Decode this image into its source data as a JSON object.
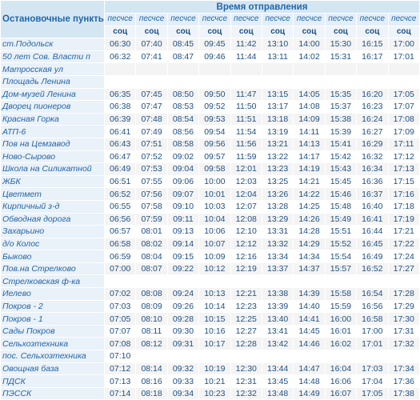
{
  "table": {
    "header": {
      "stops": "Остановочные пункты",
      "time": "Время отправления",
      "sub": [
        "песчсе",
        "песчсе",
        "песчсе",
        "песчсе",
        "песчсе",
        "песчсе",
        "песчсе",
        "песчсе",
        "песчсе",
        "песчсе"
      ],
      "kind": [
        "соц",
        "соц",
        "соц",
        "соц",
        "соц",
        "соц",
        "соц",
        "соц",
        "соц",
        "соц"
      ]
    },
    "rows": [
      {
        "stop": "ст.Подольск",
        "times": [
          "06:30",
          "07:40",
          "08:45",
          "09:45",
          "11:42",
          "13:10",
          "14:00",
          "15:30",
          "16:15",
          "17:00"
        ]
      },
      {
        "stop": "50 лет Сов. Власти п",
        "times": [
          "06:32",
          "07:41",
          "08:47",
          "09:46",
          "11:44",
          "13:11",
          "14:02",
          "15:31",
          "16:17",
          "17:01"
        ]
      },
      {
        "stop": "Матросская ул",
        "times": []
      },
      {
        "stop": "Площадь Ленина",
        "times": []
      },
      {
        "stop": "Дом-музей Ленина",
        "times": [
          "06:35",
          "07:45",
          "08:50",
          "09:50",
          "11:47",
          "13:15",
          "14:05",
          "15:35",
          "16:20",
          "17:05"
        ]
      },
      {
        "stop": "Дворец пионеров",
        "times": [
          "06:38",
          "07:47",
          "08:53",
          "09:52",
          "11:50",
          "13:17",
          "14:08",
          "15:37",
          "16:23",
          "17:07"
        ]
      },
      {
        "stop": "Красная Горка",
        "times": [
          "06:39",
          "07:48",
          "08:54",
          "09:53",
          "11:51",
          "13:18",
          "14:09",
          "15:38",
          "16:24",
          "17:08"
        ]
      },
      {
        "stop": "АТП-6",
        "times": [
          "06:41",
          "07:49",
          "08:56",
          "09:54",
          "11:54",
          "13:19",
          "14:11",
          "15:39",
          "16:27",
          "17:09"
        ]
      },
      {
        "stop": "Пов на Цемзавод",
        "times": [
          "06:43",
          "07:51",
          "08:58",
          "09:56",
          "11:56",
          "13:21",
          "14:13",
          "15:41",
          "16:29",
          "17:11"
        ]
      },
      {
        "stop": "Ново-Сырово",
        "times": [
          "06:47",
          "07:52",
          "09:02",
          "09:57",
          "11:59",
          "13:22",
          "14:17",
          "15:42",
          "16:32",
          "17:12"
        ]
      },
      {
        "stop": "Школа на Силикатной",
        "times": [
          "06:49",
          "07:53",
          "09:04",
          "09:58",
          "12:01",
          "13:23",
          "14:19",
          "15:43",
          "16:34",
          "17:13"
        ]
      },
      {
        "stop": "ЖБК",
        "times": [
          "06:51",
          "07:55",
          "09:06",
          "10:00",
          "12:03",
          "13:25",
          "14:21",
          "15:45",
          "16:36",
          "17:15"
        ]
      },
      {
        "stop": "Цветмет",
        "times": [
          "06:52",
          "07:56",
          "09:07",
          "10:01",
          "12:04",
          "13:26",
          "14:22",
          "15:46",
          "16:37",
          "17:16"
        ]
      },
      {
        "stop": "Кирпичный з-д",
        "times": [
          "06:55",
          "07:58",
          "09:10",
          "10:03",
          "12:07",
          "13:28",
          "14:25",
          "15:48",
          "16:40",
          "17:18"
        ]
      },
      {
        "stop": "Обводная дорога",
        "times": [
          "06:56",
          "07:59",
          "09:11",
          "10:04",
          "12:08",
          "13:29",
          "14:26",
          "15:49",
          "16:41",
          "17:19"
        ]
      },
      {
        "stop": "Захарьино",
        "times": [
          "06:57",
          "08:01",
          "09:13",
          "10:06",
          "12:10",
          "13:31",
          "14:28",
          "15:51",
          "16:44",
          "17:21"
        ]
      },
      {
        "stop": "д/о Колос",
        "times": [
          "06:58",
          "08:02",
          "09:14",
          "10:07",
          "12:12",
          "13:32",
          "14:29",
          "15:52",
          "16:45",
          "17:22"
        ]
      },
      {
        "stop": "Быково",
        "times": [
          "06:59",
          "08:04",
          "09:15",
          "10:09",
          "12:16",
          "13:34",
          "14:34",
          "15:54",
          "16:49",
          "17:24"
        ]
      },
      {
        "stop": "Пов.на Стрелково",
        "times": [
          "07:00",
          "08:07",
          "09:22",
          "10:12",
          "12:19",
          "13:37",
          "14:37",
          "15:57",
          "16:52",
          "17:27"
        ]
      },
      {
        "stop": "Стрелковская ф-ка",
        "times": []
      },
      {
        "stop": "Иелево",
        "times": [
          "07:02",
          "08:08",
          "09:24",
          "10:13",
          "12:21",
          "13:38",
          "14:39",
          "15:58",
          "16:54",
          "17:28"
        ]
      },
      {
        "stop": "Покров - 2",
        "times": [
          "07:03",
          "08:09",
          "09:26",
          "10:14",
          "12:23",
          "13:39",
          "14:40",
          "15:59",
          "16:56",
          "17:29"
        ]
      },
      {
        "stop": "Покров - 1",
        "times": [
          "07:05",
          "08:10",
          "09:28",
          "10:15",
          "12:25",
          "13:40",
          "14:41",
          "16:00",
          "16:58",
          "17:30"
        ]
      },
      {
        "stop": "Сады Покров",
        "times": [
          "07:07",
          "08:11",
          "09:30",
          "10:16",
          "12:27",
          "13:41",
          "14:45",
          "16:01",
          "17:00",
          "17:31"
        ]
      },
      {
        "stop": "Сельхозтехника",
        "times": [
          "07:08",
          "08:12",
          "09:31",
          "10:17",
          "12:28",
          "13:42",
          "14:46",
          "16:02",
          "17:01",
          "17:32"
        ]
      },
      {
        "stop": "пос. Сельхозтехника",
        "times": [
          "07:10"
        ]
      },
      {
        "stop": "Овощная база",
        "times": [
          "07:12",
          "08:14",
          "09:32",
          "10:19",
          "12:30",
          "13:44",
          "14:47",
          "16:04",
          "17:03",
          "17:34"
        ]
      },
      {
        "stop": "ПДСК",
        "times": [
          "07:13",
          "08:16",
          "09:33",
          "10:21",
          "12:31",
          "13:45",
          "14:48",
          "16:06",
          "17:04",
          "17:36"
        ]
      },
      {
        "stop": "ПЭССК",
        "times": [
          "07:14",
          "08:18",
          "09:34",
          "10:23",
          "12:32",
          "13:48",
          "14:49",
          "16:07",
          "17:05",
          "17:38"
        ]
      }
    ]
  }
}
